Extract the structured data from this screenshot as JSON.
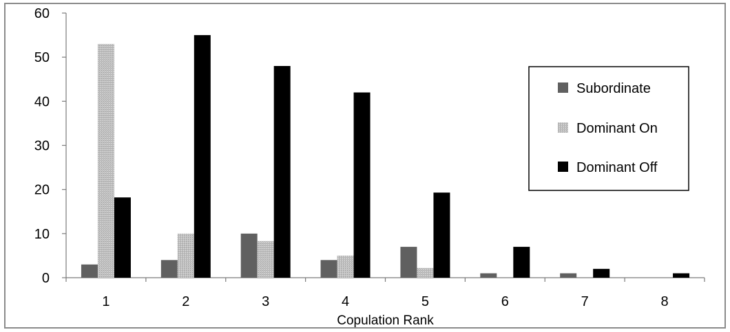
{
  "chart_data": {
    "type": "bar",
    "title": "",
    "xlabel": "Copulation Rank",
    "ylabel": "",
    "categories": [
      "1",
      "2",
      "3",
      "4",
      "5",
      "6",
      "7",
      "8"
    ],
    "ylim": [
      0,
      60
    ],
    "yticks": [
      0,
      10,
      20,
      30,
      40,
      50,
      60
    ],
    "grid": false,
    "legend_position": "right",
    "series": [
      {
        "name": "Subordinate",
        "color": "#606060",
        "pattern": "solid",
        "values": [
          3,
          4,
          10,
          4,
          7,
          1,
          1,
          0
        ]
      },
      {
        "name": "Dominant On",
        "color": "#bdbdbd",
        "pattern": "stipple",
        "values": [
          53,
          10,
          8.3,
          5,
          2.2,
          0,
          0,
          0
        ]
      },
      {
        "name": "Dominant Off",
        "color": "#000000",
        "pattern": "solid",
        "values": [
          18.2,
          55,
          48,
          42,
          19.3,
          7,
          2,
          1
        ]
      }
    ]
  }
}
